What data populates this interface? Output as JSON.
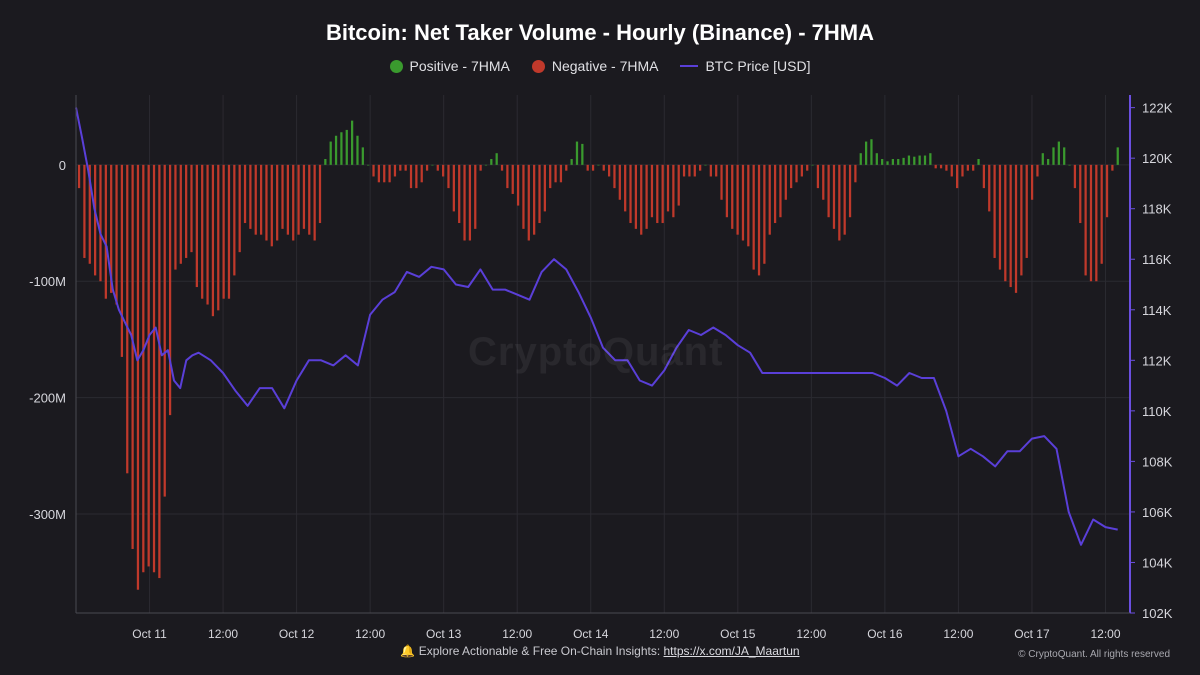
{
  "title": "Bitcoin: Net Taker Volume - Hourly (Binance) - 7HMA",
  "legend": {
    "positive": "Positive - 7HMA",
    "negative": "Negative - 7HMA",
    "price": "BTC Price [USD]"
  },
  "watermark": "CryptoQuant",
  "footer": {
    "icon": "bell-icon",
    "text": "🔔 Explore Actionable & Free On-Chain Insights:",
    "link": "https://x.com/JA_Maartun",
    "copyright": "© CryptoQuant. All rights reserved"
  },
  "colors": {
    "background": "#1b1a1f",
    "positive": "#3a9a2e",
    "negative": "#c0392b",
    "price": "#5a3fd8",
    "grid": "#2b2a31"
  },
  "chart_data": {
    "type": "bar",
    "x_ticks": [
      "Oct 11",
      "12:00",
      "Oct 12",
      "12:00",
      "Oct 13",
      "12:00",
      "Oct 14",
      "12:00",
      "Oct 15",
      "12:00",
      "Oct 16",
      "12:00",
      "Oct 17",
      "12:00"
    ],
    "y_left_ticks": [
      "0",
      "-100M",
      "-200M",
      "-300M"
    ],
    "y_right_ticks": [
      "122K",
      "120K",
      "118K",
      "116K",
      "114K",
      "112K",
      "110K",
      "108K",
      "106K",
      "104K",
      "102K"
    ],
    "y_left_range_millions": [
      -385,
      60
    ],
    "y_right_range_usd": [
      102000,
      122500
    ],
    "x_range_hours": [
      0,
      172
    ],
    "x_tick_hours": [
      12,
      24,
      36,
      48,
      60,
      72,
      84,
      96,
      108,
      120,
      132,
      144,
      156,
      168
    ],
    "series": [
      {
        "name": "Net Taker Volume - 7HMA (millions)",
        "values": [
          -20,
          -80,
          -85,
          -95,
          -100,
          -115,
          -110,
          -120,
          -165,
          -265,
          -330,
          -365,
          -350,
          -345,
          -350,
          -355,
          -285,
          -215,
          -90,
          -85,
          -80,
          -75,
          -105,
          -115,
          -120,
          -130,
          -125,
          -115,
          -115,
          -95,
          -75,
          -50,
          -55,
          -60,
          -60,
          -65,
          -70,
          -65,
          -55,
          -60,
          -65,
          -60,
          -55,
          -60,
          -65,
          -50,
          5,
          20,
          25,
          28,
          30,
          38,
          25,
          15,
          0,
          -10,
          -15,
          -15,
          -15,
          -10,
          -5,
          -5,
          -20,
          -20,
          -15,
          -5,
          0,
          -5,
          -10,
          -20,
          -40,
          -50,
          -65,
          -65,
          -55,
          -5,
          0,
          5,
          10,
          -5,
          -20,
          -25,
          -35,
          -55,
          -65,
          -60,
          -50,
          -40,
          -20,
          -15,
          -15,
          -5,
          5,
          20,
          18,
          -5,
          -5,
          0,
          -5,
          -10,
          -20,
          -30,
          -40,
          -50,
          -55,
          -60,
          -55,
          -45,
          -50,
          -50,
          -40,
          -45,
          -35,
          -10,
          -10,
          -10,
          -5,
          0,
          -10,
          -10,
          -30,
          -45,
          -55,
          -60,
          -65,
          -70,
          -90,
          -95,
          -85,
          -60,
          -50,
          -45,
          -30,
          -20,
          -15,
          -10,
          -5,
          0,
          -20,
          -30,
          -45,
          -55,
          -65,
          -60,
          -45,
          -15,
          10,
          20,
          22,
          10,
          5,
          3,
          5,
          5,
          6,
          8,
          7,
          8,
          8,
          10,
          -3,
          -3,
          -5,
          -10,
          -20,
          -10,
          -5,
          -5,
          5,
          -20,
          -40,
          -80,
          -90,
          -100,
          -105,
          -110,
          -95,
          -80,
          -30,
          -10,
          10,
          5,
          15,
          20,
          15,
          0,
          -20,
          -50,
          -95,
          -100,
          -100,
          -85,
          -45,
          -5,
          15
        ]
      },
      {
        "name": "BTC Price [USD]",
        "x_hours": [
          0,
          1,
          2,
          3,
          4,
          5,
          6,
          7,
          8,
          9,
          10,
          11,
          12,
          13,
          14,
          15,
          16,
          17,
          18,
          19,
          20,
          22,
          24,
          26,
          28,
          30,
          32,
          34,
          36,
          38,
          40,
          42,
          44,
          46,
          48,
          50,
          52,
          54,
          56,
          58,
          60,
          62,
          64,
          66,
          68,
          70,
          72,
          74,
          76,
          78,
          80,
          82,
          84,
          86,
          88,
          90,
          92,
          94,
          96,
          98,
          100,
          102,
          104,
          106,
          108,
          110,
          112,
          114,
          116,
          118,
          120,
          122,
          124,
          126,
          128,
          130,
          132,
          134,
          136,
          138,
          140,
          142,
          144,
          146,
          148,
          150,
          152,
          154,
          156,
          158,
          160,
          162,
          164,
          166,
          168,
          170
        ],
        "values": [
          122000,
          120800,
          119500,
          118000,
          117000,
          116500,
          114800,
          114000,
          113500,
          113000,
          112000,
          112400,
          113000,
          113300,
          112200,
          112400,
          111200,
          110900,
          112000,
          112200,
          112300,
          112000,
          111500,
          110800,
          110200,
          110900,
          110900,
          110100,
          111200,
          112000,
          112000,
          111800,
          112200,
          111800,
          113800,
          114400,
          114700,
          115500,
          115300,
          115700,
          115600,
          115000,
          114900,
          115600,
          114800,
          114800,
          114600,
          114400,
          115500,
          116000,
          115600,
          114700,
          113700,
          112500,
          112000,
          112000,
          111200,
          111000,
          111600,
          112500,
          113200,
          113000,
          113300,
          113000,
          112600,
          112300,
          111500,
          111500,
          111500,
          111500,
          111500,
          111500,
          111500,
          111500,
          111500,
          111500,
          111300,
          111000,
          111500,
          111300,
          111300,
          110000,
          108200,
          108500,
          108200,
          107800,
          108400,
          108400,
          108900,
          109000,
          108500,
          106000,
          104700,
          105700,
          105400,
          105300
        ]
      }
    ]
  }
}
